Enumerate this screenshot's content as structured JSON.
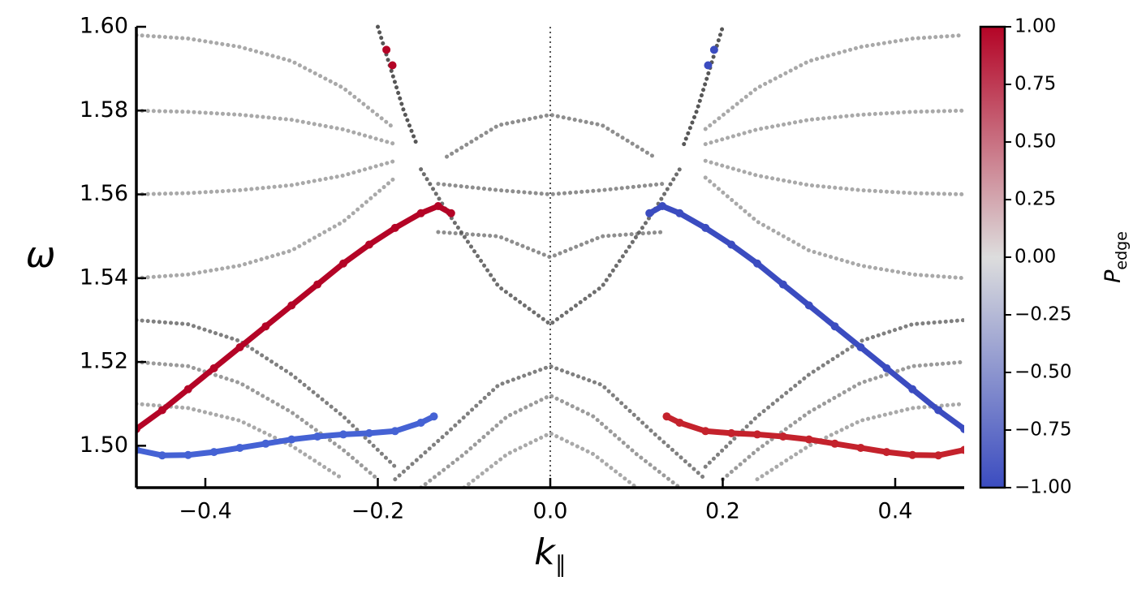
{
  "chart_data": {
    "type": "scatter",
    "xlabel": "k",
    "xlabel_sub": "∥",
    "ylabel": "ω",
    "xlim": [
      -0.48,
      0.48
    ],
    "ylim": [
      1.49,
      1.6
    ],
    "xticks": [
      {
        "value": -0.4,
        "label": "−0.4"
      },
      {
        "value": -0.2,
        "label": "−0.2"
      },
      {
        "value": 0,
        "label": "0.0"
      },
      0.2,
      0.4
    ],
    "yticks": [
      {
        "value": 1.5,
        "label": "1.50"
      },
      1.52,
      1.54,
      1.56,
      1.58,
      {
        "value": 1.6,
        "label": "1.60"
      }
    ],
    "vline": 0,
    "bulk_bands": [
      {
        "color": "#7a7a7a",
        "x": [
          -0.12,
          -0.06,
          0,
          0.06,
          0.12
        ],
        "values": [
          1.569,
          1.5765,
          1.579,
          1.5765,
          1.569
        ]
      },
      {
        "color": "#7a7a7a",
        "x": [
          -0.13,
          -0.06,
          0,
          0.06,
          0.13
        ],
        "values": [
          1.5625,
          1.561,
          1.56,
          1.561,
          1.5625
        ]
      },
      {
        "color": "#7a7a7a",
        "x": [
          -0.13,
          -0.06,
          0,
          0.06,
          0.13
        ],
        "values": [
          1.551,
          1.55,
          1.545,
          1.55,
          1.551
        ]
      },
      {
        "color": "#555555",
        "x": [
          -0.15,
          -0.12,
          -0.06,
          0,
          0.06,
          0.12,
          0.15
        ],
        "values": [
          1.566,
          1.556,
          1.538,
          1.529,
          1.538,
          1.556,
          1.566
        ]
      },
      {
        "color": "#3a3a3a",
        "x": [
          -0.2,
          -0.185,
          -0.17,
          -0.155
        ],
        "values": [
          1.6,
          1.59,
          1.58,
          1.572
        ]
      },
      {
        "color": "#3a3a3a",
        "x": [
          0.155,
          0.17,
          0.185,
          0.2
        ],
        "values": [
          1.572,
          1.58,
          1.59,
          1.6
        ]
      },
      {
        "color": "#9a9a9a",
        "x": [
          -0.48,
          -0.42,
          -0.36,
          -0.3,
          -0.24,
          -0.18
        ],
        "values": [
          1.598,
          1.5972,
          1.5952,
          1.5918,
          1.5854,
          1.5756
        ]
      },
      {
        "color": "#9a9a9a",
        "x": [
          -0.48,
          -0.42,
          -0.36,
          -0.3,
          -0.24,
          -0.18
        ],
        "values": [
          1.58,
          1.5797,
          1.579,
          1.5778,
          1.5755,
          1.572
        ]
      },
      {
        "color": "#9a9a9a",
        "x": [
          -0.48,
          -0.42,
          -0.36,
          -0.3,
          -0.24,
          -0.18
        ],
        "values": [
          1.56,
          1.5603,
          1.561,
          1.5622,
          1.5645,
          1.568
        ]
      },
      {
        "color": "#9a9a9a",
        "x": [
          -0.48,
          -0.42,
          -0.36,
          -0.3,
          -0.24,
          -0.18
        ],
        "values": [
          1.54,
          1.5409,
          1.543,
          1.5466,
          1.5535,
          1.564
        ]
      },
      {
        "color": "#9a9a9a",
        "x": [
          0.18,
          0.24,
          0.3,
          0.36,
          0.42,
          0.48
        ],
        "values": [
          1.5756,
          1.5854,
          1.5918,
          1.5952,
          1.5972,
          1.598
        ]
      },
      {
        "color": "#9a9a9a",
        "x": [
          0.18,
          0.24,
          0.3,
          0.36,
          0.42,
          0.48
        ],
        "values": [
          1.572,
          1.5755,
          1.5778,
          1.579,
          1.5797,
          1.58
        ]
      },
      {
        "color": "#9a9a9a",
        "x": [
          0.18,
          0.24,
          0.3,
          0.36,
          0.42,
          0.48
        ],
        "values": [
          1.568,
          1.5645,
          1.5622,
          1.561,
          1.5603,
          1.56
        ]
      },
      {
        "color": "#9a9a9a",
        "x": [
          0.18,
          0.24,
          0.3,
          0.36,
          0.42,
          0.48
        ],
        "values": [
          1.564,
          1.5535,
          1.5466,
          1.543,
          1.5409,
          1.54
        ]
      },
      {
        "color": "#6a6a6a",
        "x": [
          -0.18,
          -0.12,
          -0.06,
          0,
          0.06,
          0.12,
          0.18
        ],
        "values": [
          1.492,
          1.503,
          1.5145,
          1.519,
          1.5145,
          1.503,
          1.492
        ]
      },
      {
        "color": "#8a8a8a",
        "x": [
          -0.15,
          -0.1,
          -0.05,
          0,
          0.05,
          0.1,
          0.15
        ],
        "values": [
          1.49,
          1.498,
          1.507,
          1.512,
          1.507,
          1.498,
          1.49
        ]
      },
      {
        "color": "#9a9a9a",
        "x": [
          -0.1,
          -0.05,
          0,
          0.05,
          0.1
        ],
        "values": [
          1.49,
          1.498,
          1.503,
          1.498,
          1.49
        ]
      },
      {
        "color": "#6a6a6a",
        "x": [
          -0.48,
          -0.42,
          -0.36,
          -0.3,
          -0.24,
          -0.18
        ],
        "values": [
          1.53,
          1.529,
          1.525,
          1.517,
          1.507,
          1.495
        ]
      },
      {
        "color": "#8a8a8a",
        "x": [
          -0.48,
          -0.42,
          -0.36,
          -0.3,
          -0.24,
          -0.2
        ],
        "values": [
          1.52,
          1.519,
          1.515,
          1.508,
          1.499,
          1.492
        ]
      },
      {
        "color": "#9a9a9a",
        "x": [
          -0.48,
          -0.42,
          -0.36,
          -0.3,
          -0.24
        ],
        "values": [
          1.51,
          1.509,
          1.506,
          1.5,
          1.492
        ]
      },
      {
        "color": "#6a6a6a",
        "x": [
          0.18,
          0.24,
          0.3,
          0.36,
          0.42,
          0.48
        ],
        "values": [
          1.495,
          1.507,
          1.517,
          1.525,
          1.529,
          1.53
        ]
      },
      {
        "color": "#8a8a8a",
        "x": [
          0.2,
          0.24,
          0.3,
          0.36,
          0.42,
          0.48
        ],
        "values": [
          1.492,
          1.499,
          1.508,
          1.515,
          1.519,
          1.52
        ]
      },
      {
        "color": "#9a9a9a",
        "x": [
          0.24,
          0.3,
          0.36,
          0.42,
          0.48
        ],
        "values": [
          1.492,
          1.5,
          1.506,
          1.509,
          1.51
        ]
      }
    ],
    "series": [
      {
        "color": "#b40426",
        "x": [
          -0.48,
          -0.45,
          -0.42,
          -0.39,
          -0.36,
          -0.33,
          -0.3,
          -0.27,
          -0.24,
          -0.21,
          -0.18,
          -0.15,
          -0.13,
          -0.115
        ],
        "values": [
          1.504,
          1.5085,
          1.5135,
          1.5185,
          1.5235,
          1.5285,
          1.5335,
          1.5385,
          1.5435,
          1.548,
          1.552,
          1.5555,
          1.5572,
          1.5555
        ]
      },
      {
        "color": "#3b4cc0",
        "x": [
          0.115,
          0.13,
          0.15,
          0.18,
          0.21,
          0.24,
          0.27,
          0.3,
          0.33,
          0.36,
          0.39,
          0.42,
          0.45,
          0.48
        ],
        "values": [
          1.5555,
          1.5572,
          1.5555,
          1.552,
          1.548,
          1.5435,
          1.5385,
          1.5335,
          1.5285,
          1.5235,
          1.5185,
          1.5135,
          1.5085,
          1.504
        ]
      },
      {
        "color": "#4562d4",
        "x": [
          -0.48,
          -0.45,
          -0.42,
          -0.39,
          -0.36,
          -0.33,
          -0.3,
          -0.27,
          -0.24,
          -0.21,
          -0.18,
          -0.15,
          -0.135
        ],
        "values": [
          1.499,
          1.4977,
          1.4978,
          1.4985,
          1.4995,
          1.5005,
          1.5015,
          1.5022,
          1.5027,
          1.503,
          1.5035,
          1.5055,
          1.507
        ]
      },
      {
        "color": "#c4222c",
        "x": [
          0.135,
          0.15,
          0.18,
          0.21,
          0.24,
          0.27,
          0.3,
          0.33,
          0.36,
          0.39,
          0.42,
          0.45,
          0.48
        ],
        "values": [
          1.507,
          1.5055,
          1.5035,
          1.503,
          1.5027,
          1.5022,
          1.5015,
          1.5005,
          1.4995,
          1.4985,
          1.4978,
          1.4977,
          1.499
        ]
      },
      {
        "color": "#b40426",
        "x": [
          -0.19,
          -0.183
        ],
        "values": [
          1.5945,
          1.5908
        ]
      },
      {
        "color": "#3b4cc0",
        "x": [
          0.19,
          0.183
        ],
        "values": [
          1.5945,
          1.5908
        ]
      }
    ],
    "colorbar": {
      "label": "P",
      "label_sub": "edge",
      "lim": [
        -1,
        1
      ],
      "colors": [
        "#3b4cc0",
        "#dddddd",
        "#b40426"
      ],
      "ticks": [
        {
          "value": 1,
          "label": "1.00"
        },
        0.75,
        {
          "value": 0.5,
          "label": "0.50"
        },
        0.25,
        {
          "value": 0,
          "label": "0.00"
        },
        {
          "value": -0.25,
          "label": "−0.25"
        },
        {
          "value": -0.5,
          "label": "−0.50"
        },
        {
          "value": -0.75,
          "label": "−0.75"
        },
        {
          "value": -1,
          "label": "−1.00"
        }
      ]
    }
  }
}
